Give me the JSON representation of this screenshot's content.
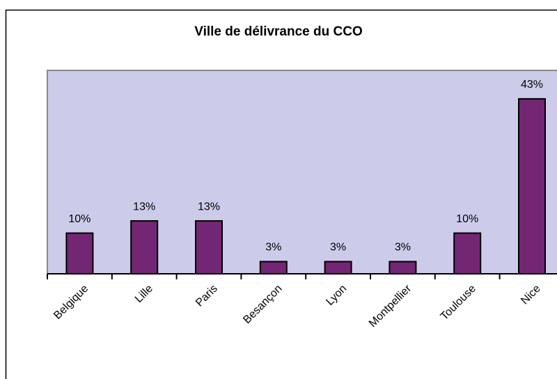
{
  "chart_data": {
    "type": "bar",
    "title": "Ville de délivrance du CCO",
    "categories": [
      "Belgique",
      "Lille",
      "Paris",
      "Besançon",
      "Lyon",
      "Montpellier",
      "Toulouse",
      "Nice"
    ],
    "values": [
      10,
      13,
      13,
      3,
      3,
      3,
      10,
      43
    ],
    "value_labels": [
      "10%",
      "13%",
      "13%",
      "3%",
      "3%",
      "3%",
      "10%",
      "43%"
    ],
    "color": "#732673"
  }
}
